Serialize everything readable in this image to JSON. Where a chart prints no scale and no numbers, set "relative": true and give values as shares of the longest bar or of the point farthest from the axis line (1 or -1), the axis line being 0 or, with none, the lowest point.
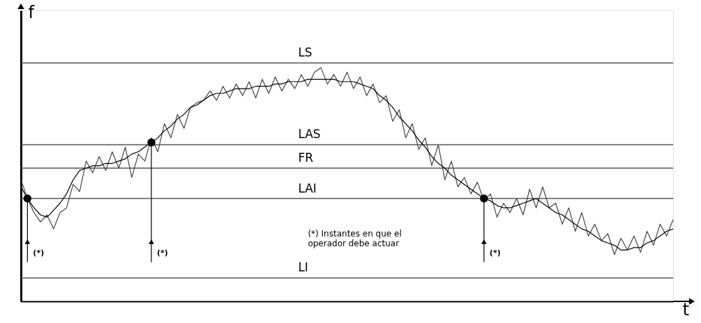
{
  "chart_data": {
    "type": "line",
    "relative": true,
    "xlabel": "t",
    "ylabel": "f",
    "tick_labels": false,
    "grid": false,
    "line_style": "solid",
    "marker": "none",
    "categories": [
      null,
      null,
      null,
      null,
      null,
      null,
      null,
      null,
      null,
      null,
      null,
      null,
      null,
      null,
      null,
      null,
      null,
      null,
      null,
      null,
      null,
      null,
      null,
      null,
      null,
      null,
      null,
      null,
      null,
      null,
      null,
      null,
      null,
      null,
      null,
      null,
      null,
      null,
      null,
      null,
      null,
      null,
      null,
      null,
      null,
      null,
      null,
      null,
      null,
      null,
      null,
      null,
      null,
      null,
      null,
      null,
      null,
      null,
      null,
      null,
      null,
      null,
      null,
      null,
      null,
      null,
      null,
      null,
      null,
      null,
      null,
      null,
      null,
      null,
      null,
      null,
      null,
      null,
      null,
      null,
      null,
      null,
      null,
      null,
      null,
      null,
      null,
      null,
      null,
      null,
      null,
      null,
      null,
      null,
      null,
      null,
      null,
      null,
      null,
      null,
      null
    ],
    "series": [
      {
        "color": "#444444",
        "values": [
          0.52,
          0.44,
          0.38,
          0.34,
          0.37,
          0.31,
          0.38,
          0.4,
          0.5,
          0.47,
          0.6,
          0.55,
          0.62,
          0.56,
          0.64,
          0.57,
          0.66,
          0.53,
          0.63,
          0.6,
          0.7,
          0.64,
          0.76,
          0.7,
          0.8,
          0.74,
          0.83,
          0.85,
          0.86,
          0.9,
          0.86,
          0.92,
          0.87,
          0.93,
          0.88,
          0.94,
          0.87,
          0.95,
          0.89,
          0.96,
          0.9,
          0.95,
          0.91,
          0.97,
          0.92,
          0.98,
          1.0,
          0.93,
          0.97,
          0.92,
          0.98,
          0.91,
          0.96,
          0.88,
          0.93,
          0.85,
          0.88,
          0.77,
          0.82,
          0.7,
          0.76,
          0.65,
          0.7,
          0.58,
          0.67,
          0.52,
          0.6,
          0.49,
          0.53,
          0.46,
          0.51,
          0.43,
          0.46,
          0.36,
          0.42,
          0.38,
          0.44,
          0.37,
          0.48,
          0.4,
          0.49,
          0.4,
          0.42,
          0.33,
          0.4,
          0.3,
          0.38,
          0.28,
          0.33,
          0.26,
          0.29,
          0.2,
          0.27,
          0.22,
          0.28,
          0.21,
          0.3,
          0.24,
          0.33,
          0.28,
          0.35
        ]
      },
      {
        "color": "#000000",
        "values": [
          0.49,
          0.44,
          0.4,
          0.37,
          0.36,
          0.39,
          0.42,
          0.46,
          0.52,
          0.56,
          0.57,
          0.58,
          0.58,
          0.59,
          0.59,
          0.6,
          0.61,
          0.63,
          0.64,
          0.66,
          0.68,
          0.7,
          0.73,
          0.75,
          0.78,
          0.8,
          0.83,
          0.84,
          0.86,
          0.88,
          0.89,
          0.89,
          0.9,
          0.91,
          0.91,
          0.91,
          0.92,
          0.92,
          0.92,
          0.93,
          0.93,
          0.94,
          0.94,
          0.94,
          0.95,
          0.95,
          0.95,
          0.95,
          0.95,
          0.94,
          0.94,
          0.94,
          0.93,
          0.92,
          0.91,
          0.88,
          0.86,
          0.83,
          0.79,
          0.76,
          0.73,
          0.69,
          0.66,
          0.62,
          0.59,
          0.57,
          0.54,
          0.52,
          0.5,
          0.48,
          0.46,
          0.44,
          0.43,
          0.41,
          0.4,
          0.4,
          0.41,
          0.42,
          0.43,
          0.44,
          0.42,
          0.4,
          0.38,
          0.37,
          0.35,
          0.33,
          0.31,
          0.3,
          0.28,
          0.26,
          0.25,
          0.24,
          0.22,
          0.22,
          0.23,
          0.23,
          0.25,
          0.26,
          0.28,
          0.3,
          0.31
        ]
      }
    ],
    "ref_lines": [
      {
        "axis": "y",
        "value": 1.02,
        "label": "LS",
        "color": "#555555"
      },
      {
        "axis": "y",
        "value": 0.67,
        "label": "LAS",
        "color": "#555555"
      },
      {
        "axis": "y",
        "value": 0.57,
        "label": "FR",
        "color": "#555555"
      },
      {
        "axis": "y",
        "value": 0.44,
        "label": "LAI",
        "color": "#555555"
      },
      {
        "axis": "y",
        "value": 0.1,
        "label": "LI",
        "color": "#555555"
      }
    ],
    "annotations": [
      "(*)",
      "(*)",
      "(*)",
      "(*) Instantes en que el\noperador debe actuar"
    ]
  }
}
